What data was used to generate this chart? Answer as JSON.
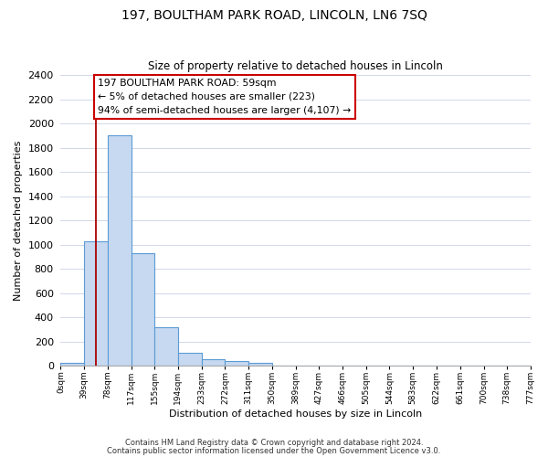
{
  "title": "197, BOULTHAM PARK ROAD, LINCOLN, LN6 7SQ",
  "subtitle": "Size of property relative to detached houses in Lincoln",
  "xlabel": "Distribution of detached houses by size in Lincoln",
  "ylabel": "Number of detached properties",
  "bar_edges": [
    0,
    39,
    78,
    117,
    155,
    194,
    233,
    272,
    311,
    350,
    389,
    427,
    466,
    505,
    544,
    583,
    622,
    661,
    700,
    738,
    777
  ],
  "bar_heights": [
    25,
    1025,
    1900,
    925,
    320,
    105,
    50,
    35,
    20,
    0,
    0,
    0,
    0,
    0,
    0,
    0,
    0,
    0,
    0,
    0
  ],
  "bar_color": "#c6d9f0",
  "bar_edge_color": "#5b9bd5",
  "tick_labels": [
    "0sqm",
    "39sqm",
    "78sqm",
    "117sqm",
    "155sqm",
    "194sqm",
    "233sqm",
    "272sqm",
    "311sqm",
    "350sqm",
    "389sqm",
    "427sqm",
    "466sqm",
    "505sqm",
    "544sqm",
    "583sqm",
    "622sqm",
    "661sqm",
    "700sqm",
    "738sqm",
    "777sqm"
  ],
  "ylim": [
    0,
    2400
  ],
  "yticks": [
    0,
    200,
    400,
    600,
    800,
    1000,
    1200,
    1400,
    1600,
    1800,
    2000,
    2200,
    2400
  ],
  "vline_x": 59,
  "vline_color": "#aa0000",
  "annotation_title": "197 BOULTHAM PARK ROAD: 59sqm",
  "annotation_line1": "← 5% of detached houses are smaller (223)",
  "annotation_line2": "94% of semi-detached houses are larger (4,107) →",
  "footer1": "Contains HM Land Registry data © Crown copyright and database right 2024.",
  "footer2": "Contains public sector information licensed under the Open Government Licence v3.0.",
  "background_color": "#ffffff",
  "grid_color": "#d0d8e8"
}
